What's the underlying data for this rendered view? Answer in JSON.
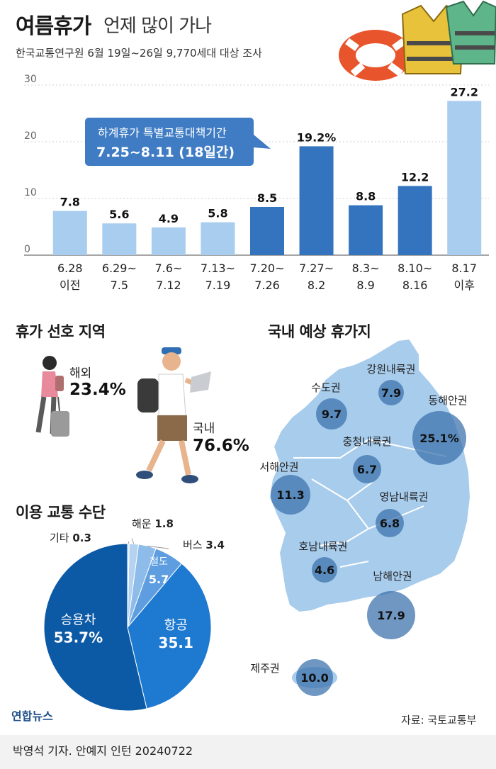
{
  "title": "여름휴가",
  "title_sub": "언제 많이 가나",
  "subtitle": "한국교통연구원 6월 19일~26일 9,770세대 대상 조사",
  "callout": {
    "line1": "하계휴가 특별교통대책기간",
    "line2": "7.25~8.11 (18일간)"
  },
  "colors": {
    "light_bar": "#a9cdef",
    "dark_bar": "#3474bf",
    "callout_bg": "#3f7cc4",
    "map_land": "#a8ccec",
    "map_circle": "#3f74ad"
  },
  "chart_data": [
    {
      "type": "bar",
      "title": "",
      "xlabel": "",
      "ylabel": "",
      "ylim": [
        0,
        30
      ],
      "yticks": [
        "0",
        "10",
        "20",
        "30"
      ],
      "grid": true,
      "categories": [
        [
          "6.28",
          "이전"
        ],
        [
          "6.29~",
          "7.5"
        ],
        [
          "7.6~",
          "7.12"
        ],
        [
          "7.13~",
          "7.19"
        ],
        [
          "7.20~",
          "7.26"
        ],
        [
          "7.27~",
          "8.2"
        ],
        [
          "8.3~",
          "8.9"
        ],
        [
          "8.10~",
          "8.16"
        ],
        [
          "8.17",
          "이후"
        ]
      ],
      "values": [
        7.8,
        5.6,
        4.9,
        5.8,
        8.5,
        19.2,
        8.8,
        12.2,
        27.2
      ],
      "value_labels": [
        "7.8",
        "5.6",
        "4.9",
        "5.8",
        "8.5",
        "19.2%",
        "8.8",
        "12.2",
        "27.2"
      ],
      "highlighted": [
        false,
        false,
        false,
        false,
        true,
        true,
        true,
        true,
        false
      ]
    },
    {
      "type": "pie",
      "title": "이용 교통 수단",
      "slices": [
        {
          "label": "승용차",
          "value": 53.7,
          "value_label": "53.7%",
          "color": "#0c5aa6"
        },
        {
          "label": "항공",
          "value": 35.1,
          "value_label": "35.1",
          "color": "#1e7ad0"
        },
        {
          "label": "철도",
          "value": 5.7,
          "value_label": "5.7",
          "color": "#5e9ee0"
        },
        {
          "label": "버스",
          "value": 3.4,
          "value_label": "3.4",
          "color": "#8dbbea"
        },
        {
          "label": "해운",
          "value": 1.8,
          "value_label": "1.8",
          "color": "#b5d3f1"
        },
        {
          "label": "기타",
          "value": 0.3,
          "value_label": "0.3",
          "color": "#d7e7f7"
        }
      ]
    }
  ],
  "preference": {
    "title": "휴가 선호 지역",
    "abroad_label": "해외",
    "abroad_value": "23.4%",
    "domestic_label": "국내",
    "domestic_value": "76.6%"
  },
  "map": {
    "title": "국내 예상 휴가지",
    "regions": [
      {
        "name": "강원내륙권",
        "value": "7.9"
      },
      {
        "name": "수도권",
        "value": "9.7"
      },
      {
        "name": "동해안권",
        "value": "25.1%"
      },
      {
        "name": "충청내륙권",
        "value": "6.7"
      },
      {
        "name": "서해안권",
        "value": "11.3"
      },
      {
        "name": "영남내륙권",
        "value": "6.8"
      },
      {
        "name": "호남내륙권",
        "value": "4.6"
      },
      {
        "name": "남해안권",
        "value": "17.9"
      },
      {
        "name": "제주권",
        "value": "10.0"
      }
    ]
  },
  "footer": {
    "logo": "연합뉴스",
    "source": "자료: 국토교통부",
    "byline": "박영석 기자. 안예지 인턴  20240722"
  }
}
